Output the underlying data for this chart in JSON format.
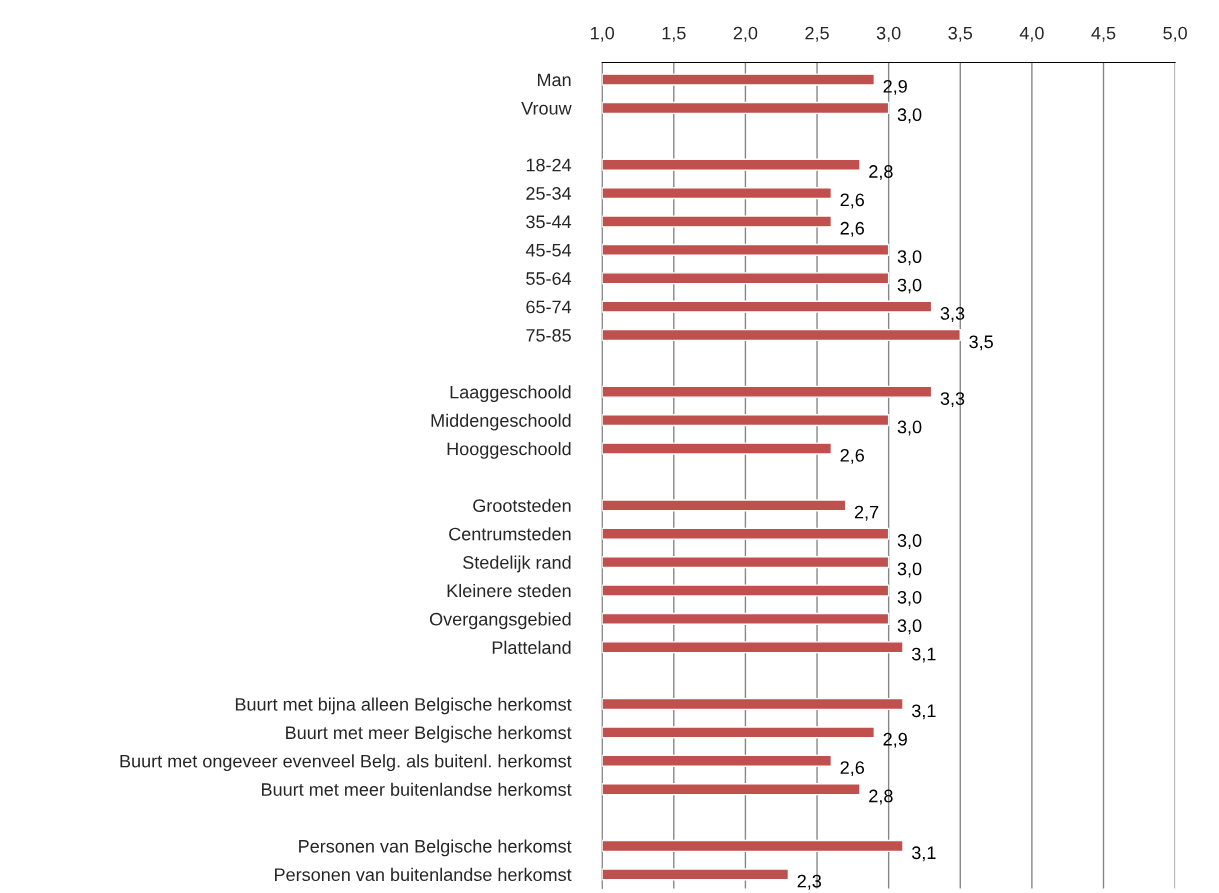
{
  "chart_data": {
    "type": "bar",
    "orientation": "horizontal",
    "categories": [
      "Man",
      "Vrouw",
      null,
      "18-24",
      "25-34",
      "35-44",
      "45-54",
      "55-64",
      "65-74",
      "75-85",
      null,
      "Laaggeschoold",
      "Middengeschoold",
      "Hooggeschoold",
      null,
      "Grootsteden",
      "Centrumsteden",
      "Stedelijk rand",
      "Kleinere steden",
      "Overgangsgebied",
      "Platteland",
      null,
      "Buurt met bijna alleen Belgische herkomst",
      "Buurt met meer Belgische herkomst",
      "Buurt met ongeveer evenveel Belg. als buitenl. herkomst",
      "Buurt met meer buitenlandse herkomst",
      null,
      "Personen van Belgische herkomst",
      "Personen van buitenlandse herkomst"
    ],
    "values": [
      2.9,
      3.0,
      null,
      2.8,
      2.6,
      2.6,
      3.0,
      3.0,
      3.3,
      3.5,
      null,
      3.3,
      3.0,
      2.6,
      null,
      2.7,
      3.0,
      3.0,
      3.0,
      3.0,
      3.1,
      null,
      3.1,
      2.9,
      2.6,
      2.8,
      null,
      3.1,
      2.3
    ],
    "value_labels": [
      "2,9",
      "3,0",
      null,
      "2,8",
      "2,6",
      "2,6",
      "3,0",
      "3,0",
      "3,3",
      "3,5",
      null,
      "3,3",
      "3,0",
      "2,6",
      null,
      "2,7",
      "3,0",
      "3,0",
      "3,0",
      "3,0",
      "3,1",
      null,
      "3,1",
      "2,9",
      "2,6",
      "2,8",
      null,
      "3,1",
      "2,3"
    ],
    "color": "#c0504d",
    "xlim": [
      1.0,
      5.0
    ],
    "xticks": [
      {
        "value": 1.0,
        "label": "1,0"
      },
      {
        "value": 1.5,
        "label": "1,5"
      },
      {
        "value": 2.0,
        "label": "2,0"
      },
      {
        "value": 2.5,
        "label": "2,5"
      },
      {
        "value": 3.0,
        "label": "3,0"
      },
      {
        "value": 3.5,
        "label": "3,5"
      },
      {
        "value": 4.0,
        "label": "4,0"
      },
      {
        "value": 4.5,
        "label": "4,5"
      },
      {
        "value": 5.0,
        "label": "5,0"
      }
    ],
    "grid": "x",
    "legend": false
  }
}
